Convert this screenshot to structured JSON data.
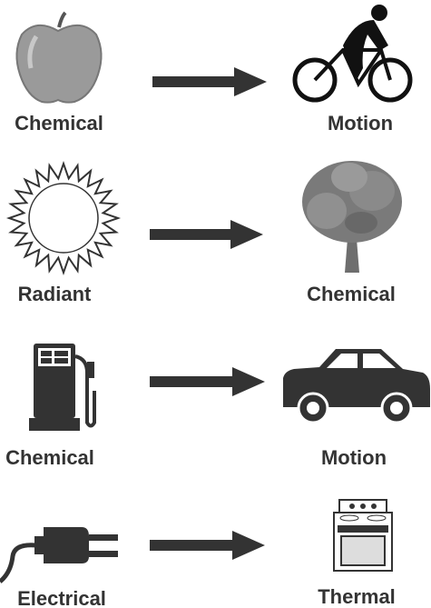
{
  "rows": [
    {
      "from": "Chemical",
      "to": "Motion"
    },
    {
      "from": "Radiant",
      "to": "Chemical"
    },
    {
      "from": "Chemical",
      "to": "Motion"
    },
    {
      "from": "Electrical",
      "to": "Thermal"
    }
  ]
}
